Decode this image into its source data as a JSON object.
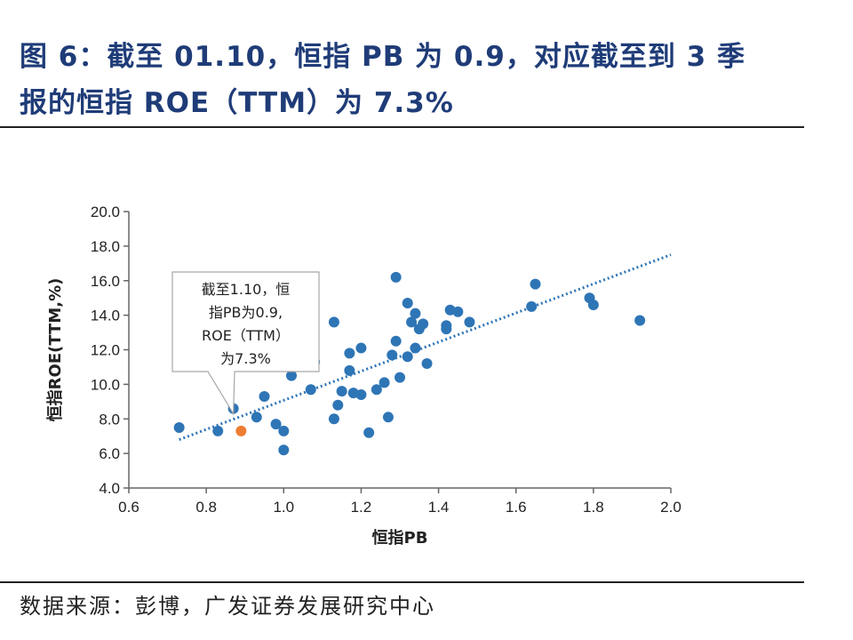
{
  "title_line1": "图 6：截至 01.10，恒指 PB 为 0.9，对应截至到 3 季",
  "title_line2": "报的恒指 ROE（TTM）为 7.3%",
  "source": "数据来源：彭博，广发证券发展研究中心",
  "colors": {
    "title": "#1f3c78",
    "point": "#2e75b6",
    "highlight": "#ed7d31",
    "trend": "#2e75b6"
  },
  "chart_data": {
    "type": "scatter",
    "xlabel": "恒指PB",
    "ylabel": "恒指ROE(TTM,%)",
    "xlim": [
      0.6,
      2.0
    ],
    "ylim": [
      4.0,
      20.0
    ],
    "xticks": [
      "0.6",
      "0.8",
      "1.0",
      "1.2",
      "1.4",
      "1.6",
      "1.8",
      "2.0"
    ],
    "yticks": [
      "4.0",
      "6.0",
      "8.0",
      "10.0",
      "12.0",
      "14.0",
      "16.0",
      "18.0",
      "20.0"
    ],
    "grid": false,
    "points": [
      [
        0.73,
        7.5
      ],
      [
        0.83,
        7.3
      ],
      [
        0.87,
        8.6
      ],
      [
        0.93,
        8.1
      ],
      [
        0.95,
        9.3
      ],
      [
        0.98,
        7.7
      ],
      [
        1.0,
        7.3
      ],
      [
        1.0,
        6.2
      ],
      [
        1.02,
        10.5
      ],
      [
        1.07,
        9.7
      ],
      [
        1.08,
        11.3
      ],
      [
        1.13,
        13.6
      ],
      [
        1.13,
        8.0
      ],
      [
        1.14,
        8.8
      ],
      [
        1.15,
        9.6
      ],
      [
        1.17,
        11.8
      ],
      [
        1.17,
        10.8
      ],
      [
        1.18,
        9.5
      ],
      [
        1.2,
        12.1
      ],
      [
        1.2,
        9.4
      ],
      [
        1.22,
        7.2
      ],
      [
        1.24,
        9.7
      ],
      [
        1.26,
        10.1
      ],
      [
        1.27,
        8.1
      ],
      [
        1.28,
        11.7
      ],
      [
        1.29,
        12.5
      ],
      [
        1.29,
        16.2
      ],
      [
        1.3,
        10.4
      ],
      [
        1.32,
        14.7
      ],
      [
        1.32,
        11.6
      ],
      [
        1.33,
        13.6
      ],
      [
        1.34,
        14.1
      ],
      [
        1.34,
        12.1
      ],
      [
        1.35,
        13.2
      ],
      [
        1.36,
        13.5
      ],
      [
        1.37,
        11.2
      ],
      [
        1.42,
        13.4
      ],
      [
        1.42,
        13.2
      ],
      [
        1.43,
        14.3
      ],
      [
        1.45,
        14.2
      ],
      [
        1.48,
        13.6
      ],
      [
        1.64,
        14.5
      ],
      [
        1.65,
        15.8
      ],
      [
        1.79,
        15.0
      ],
      [
        1.8,
        14.6
      ],
      [
        1.92,
        13.7
      ]
    ],
    "highlight_point": [
      0.89,
      7.3
    ],
    "trendline": [
      [
        0.73,
        6.8
      ],
      [
        2.0,
        17.5
      ]
    ],
    "annotation": [
      "截至1.10，恒",
      "指PB为0.9,",
      "ROE（TTM）",
      "为7.3%"
    ]
  }
}
